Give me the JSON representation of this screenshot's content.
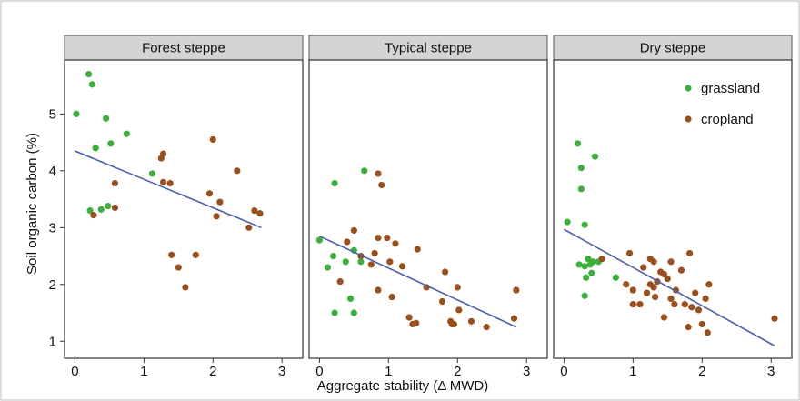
{
  "chart_data": {
    "type": "scatter",
    "xlabel": "Aggregate stability (Δ MWD)",
    "ylabel": "Soil organic carbon (%)",
    "xlim": [
      -0.15,
      3.3
    ],
    "ylim": [
      0.7,
      5.95
    ],
    "x_ticks": [
      "0",
      "1",
      "2",
      "3"
    ],
    "y_ticks": [
      "1",
      "2",
      "3",
      "4",
      "5"
    ],
    "legend": {
      "placement": "top-right of third panel",
      "items": [
        {
          "name": "grassland",
          "color": "#3cb03c"
        },
        {
          "name": "cropland",
          "color": "#9a4f1c"
        }
      ]
    },
    "trend_color": "#4a5fb0",
    "panels": [
      {
        "title": "Forest steppe",
        "trend": {
          "x": [
            0.0,
            2.7
          ],
          "y": [
            4.35,
            3.0
          ]
        },
        "series": [
          {
            "name": "grassland",
            "points": [
              [
                0.02,
                5.0
              ],
              [
                0.2,
                5.7
              ],
              [
                0.25,
                5.52
              ],
              [
                0.45,
                4.92
              ],
              [
                0.3,
                4.4
              ],
              [
                0.52,
                4.48
              ],
              [
                0.75,
                4.65
              ],
              [
                1.12,
                3.95
              ],
              [
                0.22,
                3.3
              ],
              [
                0.38,
                3.32
              ],
              [
                0.48,
                3.38
              ]
            ]
          },
          {
            "name": "cropland",
            "points": [
              [
                0.27,
                3.22
              ],
              [
                0.58,
                3.35
              ],
              [
                0.58,
                3.78
              ],
              [
                1.25,
                4.22
              ],
              [
                1.28,
                4.3
              ],
              [
                1.28,
                3.8
              ],
              [
                1.38,
                3.78
              ],
              [
                1.4,
                2.52
              ],
              [
                1.5,
                2.3
              ],
              [
                1.6,
                1.95
              ],
              [
                1.75,
                2.52
              ],
              [
                1.95,
                3.6
              ],
              [
                2.0,
                4.55
              ],
              [
                2.05,
                3.2
              ],
              [
                2.1,
                3.45
              ],
              [
                2.35,
                4.0
              ],
              [
                2.52,
                3.0
              ],
              [
                2.6,
                3.3
              ],
              [
                2.68,
                3.25
              ]
            ]
          }
        ]
      },
      {
        "title": "Typical steppe",
        "trend": {
          "x": [
            0.0,
            2.85
          ],
          "y": [
            2.85,
            1.25
          ]
        },
        "series": [
          {
            "name": "grassland",
            "points": [
              [
                0.0,
                2.78
              ],
              [
                0.12,
                2.3
              ],
              [
                0.2,
                2.5
              ],
              [
                0.22,
                3.78
              ],
              [
                0.22,
                1.5
              ],
              [
                0.38,
                2.4
              ],
              [
                0.45,
                1.75
              ],
              [
                0.5,
                2.6
              ],
              [
                0.6,
                2.4
              ],
              [
                0.5,
                1.5
              ],
              [
                0.65,
                4.0
              ]
            ]
          },
          {
            "name": "cropland",
            "points": [
              [
                0.3,
                2.05
              ],
              [
                0.4,
                2.75
              ],
              [
                0.5,
                2.95
              ],
              [
                0.6,
                2.5
              ],
              [
                0.75,
                2.35
              ],
              [
                0.8,
                2.55
              ],
              [
                0.85,
                2.82
              ],
              [
                0.85,
                1.9
              ],
              [
                0.85,
                3.95
              ],
              [
                0.9,
                3.75
              ],
              [
                0.98,
                2.82
              ],
              [
                1.02,
                2.4
              ],
              [
                1.05,
                1.78
              ],
              [
                1.1,
                2.72
              ],
              [
                1.2,
                2.32
              ],
              [
                1.3,
                1.42
              ],
              [
                1.35,
                1.3
              ],
              [
                1.4,
                1.32
              ],
              [
                1.42,
                2.62
              ],
              [
                1.55,
                1.95
              ],
              [
                1.78,
                1.7
              ],
              [
                1.82,
                2.22
              ],
              [
                1.9,
                1.35
              ],
              [
                1.92,
                1.3
              ],
              [
                1.95,
                1.3
              ],
              [
                2.0,
                1.95
              ],
              [
                2.02,
                1.55
              ],
              [
                2.2,
                1.35
              ],
              [
                2.42,
                1.25
              ],
              [
                2.82,
                1.4
              ],
              [
                2.85,
                1.9
              ]
            ]
          }
        ]
      },
      {
        "title": "Dry steppe",
        "trend": {
          "x": [
            0.0,
            3.05
          ],
          "y": [
            2.97,
            0.92
          ]
        },
        "series": [
          {
            "name": "grassland",
            "points": [
              [
                0.05,
                3.1
              ],
              [
                0.2,
                4.48
              ],
              [
                0.25,
                4.05
              ],
              [
                0.25,
                3.68
              ],
              [
                0.3,
                3.05
              ],
              [
                0.22,
                2.35
              ],
              [
                0.3,
                2.32
              ],
              [
                0.35,
                2.45
              ],
              [
                0.38,
                2.35
              ],
              [
                0.4,
                2.2
              ],
              [
                0.42,
                2.4
              ],
              [
                0.45,
                4.25
              ],
              [
                0.5,
                2.4
              ],
              [
                0.3,
                1.8
              ],
              [
                0.32,
                2.12
              ],
              [
                0.75,
                2.12
              ]
            ]
          },
          {
            "name": "cropland",
            "points": [
              [
                0.55,
                2.45
              ],
              [
                0.9,
                2.0
              ],
              [
                0.95,
                2.55
              ],
              [
                1.0,
                1.9
              ],
              [
                1.0,
                1.65
              ],
              [
                1.1,
                1.65
              ],
              [
                1.15,
                2.3
              ],
              [
                1.2,
                1.85
              ],
              [
                1.25,
                2.45
              ],
              [
                1.25,
                2.0
              ],
              [
                1.3,
                1.95
              ],
              [
                1.3,
                2.4
              ],
              [
                1.32,
                1.78
              ],
              [
                1.35,
                2.05
              ],
              [
                1.4,
                2.22
              ],
              [
                1.45,
                2.18
              ],
              [
                1.45,
                1.42
              ],
              [
                1.5,
                2.1
              ],
              [
                1.55,
                1.75
              ],
              [
                1.55,
                2.4
              ],
              [
                1.6,
                1.65
              ],
              [
                1.62,
                1.9
              ],
              [
                1.7,
                2.25
              ],
              [
                1.75,
                1.65
              ],
              [
                1.8,
                1.25
              ],
              [
                1.82,
                2.55
              ],
              [
                1.85,
                1.6
              ],
              [
                1.9,
                1.85
              ],
              [
                1.95,
                1.55
              ],
              [
                2.0,
                1.3
              ],
              [
                2.05,
                1.75
              ],
              [
                2.08,
                1.15
              ],
              [
                2.1,
                2.0
              ],
              [
                3.05,
                1.4
              ]
            ]
          }
        ]
      }
    ]
  }
}
